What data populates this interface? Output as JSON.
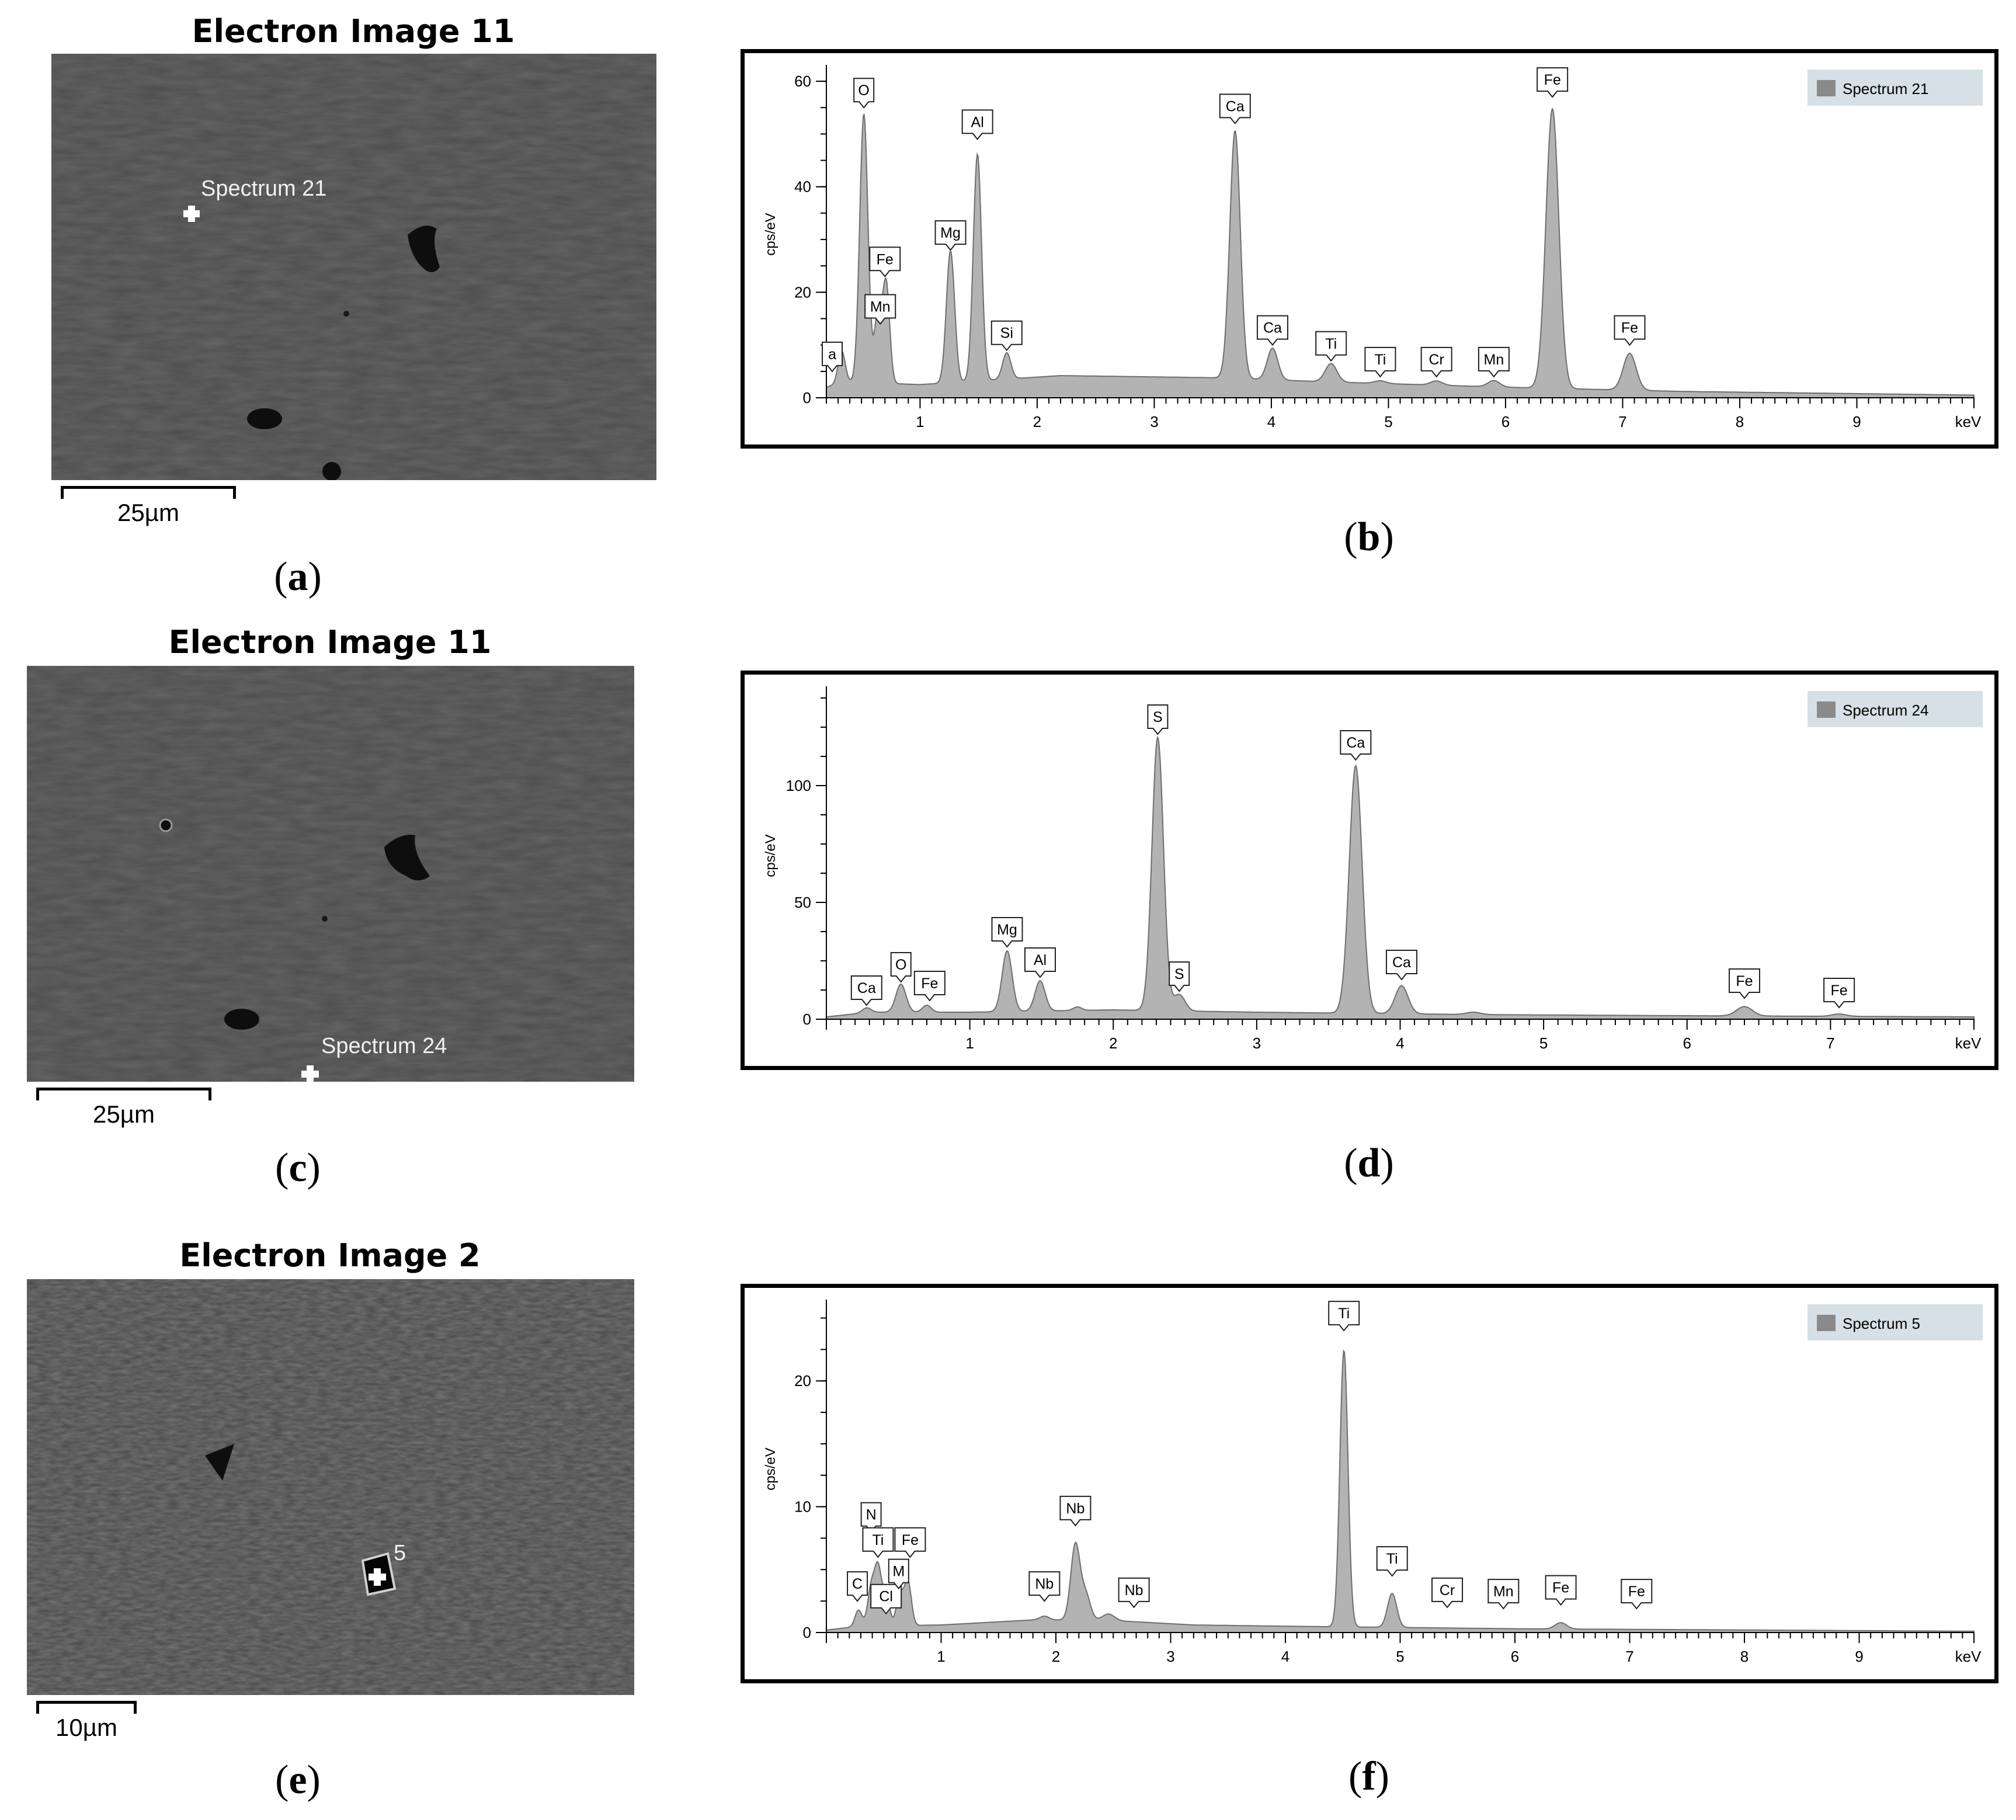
{
  "panels": {
    "a": {
      "title": "Electron Image 11",
      "spectrum_label": "Spectrum 21",
      "scalebar": "25µm",
      "label_open": "(",
      "label_letter": "a",
      "label_close": ")"
    },
    "c": {
      "title": "Electron Image 11",
      "spectrum_label": "Spectrum 24",
      "scalebar": "25µm",
      "label_open": "(",
      "label_letter": "c",
      "label_close": ")"
    },
    "e": {
      "title": "Electron Image 2",
      "spectrum_label": "5",
      "scalebar": "10µm",
      "label_open": "(",
      "label_letter": "e",
      "label_close": ")"
    },
    "b": {
      "label_open": "(",
      "label_letter": "b",
      "label_close": ")"
    },
    "d": {
      "label_open": "(",
      "label_letter": "d",
      "label_close": ")"
    },
    "f": {
      "label_open": "(",
      "label_letter": "f",
      "label_close": ")"
    }
  },
  "colors": {
    "fill": "#b3b3b3",
    "stroke": "#6e6e6e",
    "legend_bg": "#d6e0e6",
    "legend_swatch": "#8a8a8a",
    "sem_bg": "#4a4a4a"
  },
  "chart_data": [
    {
      "type": "area",
      "panel": "b",
      "legend": "Spectrum 21",
      "ylabel": "cps/eV",
      "xunit": "keV",
      "xlim": [
        0.2,
        10.0
      ],
      "ylim": [
        0,
        62
      ],
      "xticks": [
        1,
        2,
        3,
        4,
        5,
        6,
        7,
        8,
        9
      ],
      "yticks": [
        0,
        20,
        40,
        60
      ],
      "baseline": [
        [
          0.2,
          2
        ],
        [
          0.35,
          3
        ],
        [
          1.0,
          2.5
        ],
        [
          2.2,
          4.2
        ],
        [
          3.5,
          3.8
        ],
        [
          4.5,
          3.0
        ],
        [
          6.0,
          2.0
        ],
        [
          7.5,
          1.2
        ],
        [
          10.0,
          0.5
        ]
      ],
      "peaks": [
        {
          "x": 0.33,
          "h": 6,
          "w": 0.03
        },
        {
          "x": 0.52,
          "h": 51,
          "w": 0.035
        },
        {
          "x": 0.64,
          "h": 13,
          "w": 0.03
        },
        {
          "x": 0.71,
          "h": 19,
          "w": 0.03
        },
        {
          "x": 1.26,
          "h": 25,
          "w": 0.035
        },
        {
          "x": 1.49,
          "h": 43,
          "w": 0.035
        },
        {
          "x": 1.74,
          "h": 5,
          "w": 0.035
        },
        {
          "x": 3.69,
          "h": 47,
          "w": 0.045
        },
        {
          "x": 4.01,
          "h": 6,
          "w": 0.045
        },
        {
          "x": 4.51,
          "h": 3.5,
          "w": 0.05
        },
        {
          "x": 4.93,
          "h": 0.5,
          "w": 0.05
        },
        {
          "x": 5.41,
          "h": 0.8,
          "w": 0.05
        },
        {
          "x": 5.9,
          "h": 1.2,
          "w": 0.05
        },
        {
          "x": 6.4,
          "h": 53,
          "w": 0.055
        },
        {
          "x": 7.06,
          "h": 7,
          "w": 0.055
        }
      ],
      "annotations": [
        {
          "label": "a",
          "x": 0.25,
          "y": 5
        },
        {
          "label": "O",
          "x": 0.52,
          "y": 55
        },
        {
          "label": "Fe",
          "x": 0.7,
          "y": 23
        },
        {
          "label": "Mn",
          "x": 0.66,
          "y": 14
        },
        {
          "label": "Mg",
          "x": 1.26,
          "y": 28
        },
        {
          "label": "Al",
          "x": 1.49,
          "y": 49
        },
        {
          "label": "Si",
          "x": 1.74,
          "y": 9
        },
        {
          "label": "Ca",
          "x": 3.69,
          "y": 52
        },
        {
          "label": "Ca",
          "x": 4.01,
          "y": 10
        },
        {
          "label": "Ti",
          "x": 4.51,
          "y": 7
        },
        {
          "label": "Ti",
          "x": 4.93,
          "y": 4
        },
        {
          "label": "Cr",
          "x": 5.41,
          "y": 4
        },
        {
          "label": "Mn",
          "x": 5.9,
          "y": 4
        },
        {
          "label": "Fe",
          "x": 6.4,
          "y": 57
        },
        {
          "label": "Fe",
          "x": 7.06,
          "y": 10
        }
      ]
    },
    {
      "type": "area",
      "panel": "d",
      "legend": "Spectrum 24",
      "ylabel": "cps/eV",
      "xunit": "keV",
      "xlim": [
        0.0,
        8.0
      ],
      "ylim": [
        0,
        140
      ],
      "xticks": [
        1,
        2,
        3,
        4,
        5,
        6,
        7
      ],
      "yticks": [
        0,
        50,
        100
      ],
      "baseline": [
        [
          0.0,
          1
        ],
        [
          0.3,
          3
        ],
        [
          1.0,
          3.0
        ],
        [
          2.0,
          4.0
        ],
        [
          3.0,
          3.0
        ],
        [
          4.5,
          2.0
        ],
        [
          6.0,
          1.5
        ],
        [
          8.0,
          1.0
        ]
      ],
      "peaks": [
        {
          "x": 0.28,
          "h": 2,
          "w": 0.03
        },
        {
          "x": 0.52,
          "h": 12,
          "w": 0.035
        },
        {
          "x": 0.7,
          "h": 3,
          "w": 0.03
        },
        {
          "x": 1.26,
          "h": 26,
          "w": 0.035
        },
        {
          "x": 1.49,
          "h": 13,
          "w": 0.035
        },
        {
          "x": 1.75,
          "h": 1.5,
          "w": 0.03
        },
        {
          "x": 2.31,
          "h": 117,
          "w": 0.04
        },
        {
          "x": 2.46,
          "h": 7,
          "w": 0.04
        },
        {
          "x": 3.69,
          "h": 106,
          "w": 0.045
        },
        {
          "x": 4.01,
          "h": 12,
          "w": 0.045
        },
        {
          "x": 4.51,
          "h": 1.0,
          "w": 0.05
        },
        {
          "x": 6.4,
          "h": 4,
          "w": 0.055
        },
        {
          "x": 7.06,
          "h": 1,
          "w": 0.05
        }
      ],
      "annotations": [
        {
          "label": "Ca",
          "x": 0.28,
          "y": 6
        },
        {
          "label": "O",
          "x": 0.52,
          "y": 16
        },
        {
          "label": "Fe",
          "x": 0.72,
          "y": 8
        },
        {
          "label": "Mg",
          "x": 1.26,
          "y": 31
        },
        {
          "label": "Al",
          "x": 1.49,
          "y": 18
        },
        {
          "label": "S",
          "x": 2.31,
          "y": 122
        },
        {
          "label": "S",
          "x": 2.46,
          "y": 12
        },
        {
          "label": "Ca",
          "x": 3.69,
          "y": 111
        },
        {
          "label": "Ca",
          "x": 4.01,
          "y": 17
        },
        {
          "label": "Fe",
          "x": 6.4,
          "y": 9
        },
        {
          "label": "Fe",
          "x": 7.06,
          "y": 5
        }
      ]
    },
    {
      "type": "area",
      "panel": "f",
      "legend": "Spectrum 5",
      "ylabel": "cps/eV",
      "xunit": "keV",
      "xlim": [
        0.0,
        10.0
      ],
      "ylim": [
        0,
        26
      ],
      "xticks": [
        1,
        2,
        3,
        4,
        5,
        6,
        7,
        8,
        9
      ],
      "yticks": [
        0,
        10,
        20
      ],
      "baseline": [
        [
          0.0,
          0.2
        ],
        [
          0.3,
          0.5
        ],
        [
          1.0,
          0.6
        ],
        [
          1.8,
          1.0
        ],
        [
          2.4,
          1.0
        ],
        [
          3.2,
          0.6
        ],
        [
          4.0,
          0.5
        ],
        [
          6.0,
          0.3
        ],
        [
          10.0,
          0.1
        ]
      ],
      "peaks": [
        {
          "x": 0.28,
          "h": 1.3,
          "w": 0.03
        },
        {
          "x": 0.39,
          "h": 3.0,
          "w": 0.03
        },
        {
          "x": 0.45,
          "h": 4.5,
          "w": 0.03
        },
        {
          "x": 0.52,
          "h": 2.5,
          "w": 0.03
        },
        {
          "x": 0.64,
          "h": 2.5,
          "w": 0.03
        },
        {
          "x": 0.71,
          "h": 3.5,
          "w": 0.03
        },
        {
          "x": 1.9,
          "h": 0.3,
          "w": 0.04
        },
        {
          "x": 2.17,
          "h": 6.0,
          "w": 0.04
        },
        {
          "x": 2.26,
          "h": 2.0,
          "w": 0.04
        },
        {
          "x": 2.46,
          "h": 0.5,
          "w": 0.05
        },
        {
          "x": 4.51,
          "h": 22.0,
          "w": 0.035
        },
        {
          "x": 4.93,
          "h": 2.7,
          "w": 0.04
        },
        {
          "x": 6.4,
          "h": 0.5,
          "w": 0.05
        }
      ],
      "annotations": [
        {
          "label": "C",
          "x": 0.27,
          "y": 2.5
        },
        {
          "label": "N",
          "x": 0.39,
          "y": 8
        },
        {
          "label": "Ti",
          "x": 0.45,
          "y": 6
        },
        {
          "label": "Cl",
          "x": 0.52,
          "y": 1.5
        },
        {
          "label": "M",
          "x": 0.63,
          "y": 3.5
        },
        {
          "label": "Fe",
          "x": 0.73,
          "y": 6
        },
        {
          "label": "Nb",
          "x": 1.9,
          "y": 2.5
        },
        {
          "label": "Nb",
          "x": 2.17,
          "y": 8.5
        },
        {
          "label": "Nb",
          "x": 2.68,
          "y": 2
        },
        {
          "label": "Ti",
          "x": 4.51,
          "y": 24.0
        },
        {
          "label": "Ti",
          "x": 4.93,
          "y": 4.5
        },
        {
          "label": "Cr",
          "x": 5.41,
          "y": 2
        },
        {
          "label": "Mn",
          "x": 5.9,
          "y": 1.9
        },
        {
          "label": "Fe",
          "x": 6.4,
          "y": 2.2
        },
        {
          "label": "Fe",
          "x": 7.06,
          "y": 1.9
        }
      ]
    }
  ]
}
